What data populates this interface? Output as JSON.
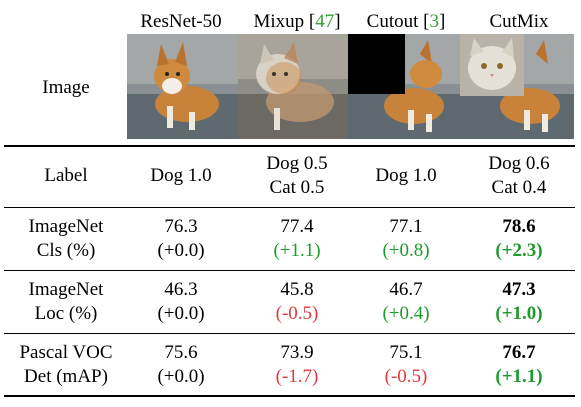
{
  "header": {
    "columns": [
      {
        "name": "ResNet-50",
        "cite": ""
      },
      {
        "name": "Mixup",
        "cite": "47"
      },
      {
        "name": "Cutout",
        "cite": "3"
      },
      {
        "name": "CutMix",
        "cite": ""
      }
    ],
    "image_row_label": "Image"
  },
  "rows": [
    {
      "label": [
        "Label"
      ],
      "cells": [
        {
          "lines": [
            "Dog 1.0"
          ]
        },
        {
          "lines": [
            "Dog 0.5",
            "Cat 0.5"
          ]
        },
        {
          "lines": [
            "Dog 1.0"
          ]
        },
        {
          "lines": [
            "Dog 0.6",
            "Cat 0.4"
          ]
        }
      ]
    },
    {
      "label": [
        "ImageNet",
        "Cls (%)"
      ],
      "cells": [
        {
          "value": "76.3",
          "delta": "(+0.0)",
          "tone": "neu",
          "bold": false
        },
        {
          "value": "77.4",
          "delta": "(+1.1)",
          "tone": "pos",
          "bold": false
        },
        {
          "value": "77.1",
          "delta": "(+0.8)",
          "tone": "pos",
          "bold": false
        },
        {
          "value": "78.6",
          "delta": "(+2.3)",
          "tone": "pos",
          "bold": true
        }
      ]
    },
    {
      "label": [
        "ImageNet",
        "Loc (%)"
      ],
      "cells": [
        {
          "value": "46.3",
          "delta": "(+0.0)",
          "tone": "neu",
          "bold": false
        },
        {
          "value": "45.8",
          "delta": "(-0.5)",
          "tone": "neg",
          "bold": false
        },
        {
          "value": "46.7",
          "delta": "(+0.4)",
          "tone": "pos",
          "bold": false
        },
        {
          "value": "47.3",
          "delta": "(+1.0)",
          "tone": "pos",
          "bold": true
        }
      ]
    },
    {
      "label": [
        "Pascal VOC",
        "Det (mAP)"
      ],
      "cells": [
        {
          "value": "75.6",
          "delta": "(+0.0)",
          "tone": "neu",
          "bold": false
        },
        {
          "value": "73.9",
          "delta": "(-1.7)",
          "tone": "neg",
          "bold": false
        },
        {
          "value": "75.1",
          "delta": "(-0.5)",
          "tone": "neg",
          "bold": false
        },
        {
          "value": "76.7",
          "delta": "(+1.1)",
          "tone": "pos",
          "bold": true
        }
      ]
    }
  ],
  "colors": {
    "positive": "#1e9a2e",
    "negative": "#e0393e",
    "citation": "#31a531"
  }
}
